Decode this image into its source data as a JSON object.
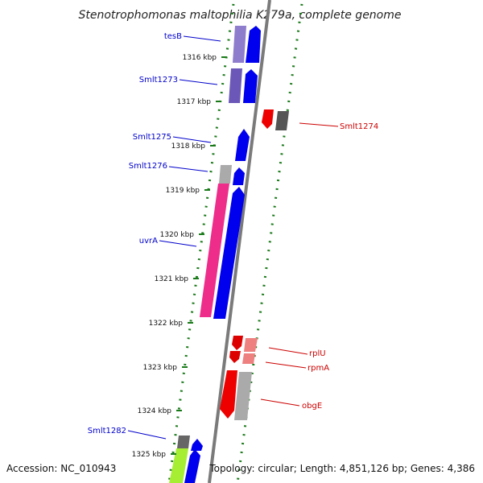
{
  "title": "Stenotrophomonas maltophilia K279a, complete genome",
  "footer": {
    "accession": "Accession: NC_010943",
    "topology": "Topology: circular; Length: 4,851,126 bp; Genes: 4,386"
  },
  "colors": {
    "backbone": "#808080",
    "ticks": "#1a7a1a",
    "label_left": "#0000cc",
    "label_right": "#cc0000"
  },
  "kbp_ticks": [
    {
      "label": "1316 kbp"
    },
    {
      "label": "1317 kbp"
    },
    {
      "label": "1318 kbp"
    },
    {
      "label": "1319 kbp"
    },
    {
      "label": "1320 kbp"
    },
    {
      "label": "1321 kbp"
    },
    {
      "label": "1322 kbp"
    },
    {
      "label": "1323 kbp"
    },
    {
      "label": "1324 kbp"
    },
    {
      "label": "1325 kbp"
    }
  ],
  "gene_labels_left": [
    {
      "text": "tesB"
    },
    {
      "text": "Smlt1273"
    },
    {
      "text": "Smlt1275"
    },
    {
      "text": "Smlt1276"
    },
    {
      "text": "uvrA"
    },
    {
      "text": "Smlt1282"
    }
  ],
  "gene_labels_right": [
    {
      "text": "Smlt1274"
    },
    {
      "text": "rplU"
    },
    {
      "text": "rpmA"
    },
    {
      "text": "obgE"
    }
  ]
}
